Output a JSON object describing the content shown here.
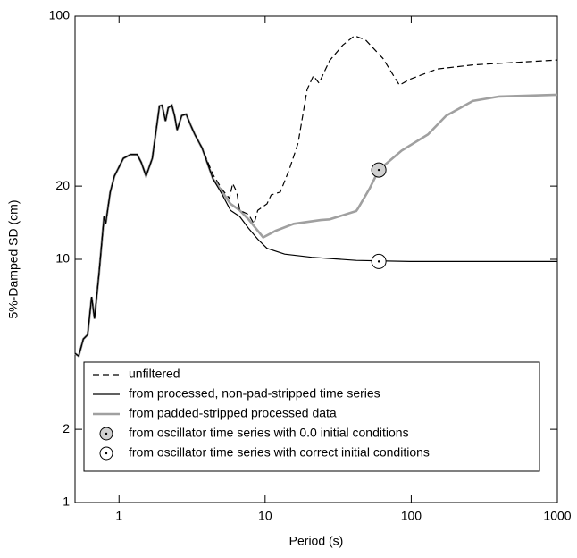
{
  "chart_data": {
    "type": "line",
    "xlabel": "Period (s)",
    "ylabel": "5%-Damped SD (cm)",
    "xscale": "log",
    "yscale": "log",
    "xlim": [
      0.5,
      1000
    ],
    "ylim": [
      1,
      100
    ],
    "xticks": [
      1,
      10,
      100,
      1000
    ],
    "yticks": [
      1,
      2,
      10,
      20,
      100
    ],
    "series": [
      {
        "name": "unfiltered",
        "color": "#000000",
        "dash": "7,4",
        "width": 1.2,
        "x": [
          0.5,
          0.53,
          0.57,
          0.61,
          0.65,
          0.68,
          0.73,
          0.79,
          0.81,
          0.87,
          0.93,
          1.07,
          1.2,
          1.33,
          1.42,
          1.53,
          1.69,
          1.89,
          1.97,
          2.08,
          2.17,
          2.3,
          2.4,
          2.5,
          2.69,
          2.88,
          3.1,
          3.3,
          3.7,
          4.4,
          5.1,
          5.7,
          6.0,
          6.4,
          6.7,
          7.7,
          8.4,
          8.9,
          10.3,
          11,
          12.7,
          14.6,
          16.8,
          19.4,
          21.4,
          23.4,
          27.6,
          34,
          40.9,
          48.7,
          64,
          83,
          98,
          150,
          264,
          1000
        ],
        "values": [
          4.1,
          4.0,
          4.7,
          4.9,
          7.0,
          5.7,
          8.8,
          15.0,
          14.0,
          18.9,
          22,
          26,
          27,
          27,
          25,
          22,
          26,
          42.7,
          43,
          37,
          42,
          43,
          39,
          34,
          39,
          39.5,
          35.5,
          32.6,
          28.7,
          22.3,
          19.3,
          17.8,
          20.5,
          18.9,
          15.9,
          15.3,
          14.0,
          15.9,
          16.9,
          18.4,
          18.9,
          23.3,
          30,
          50,
          56.8,
          53,
          65.6,
          76,
          83,
          79.8,
          67,
          52,
          55,
          60.6,
          63,
          66
        ]
      },
      {
        "name": "from processed, non-pad-stripped time series",
        "color": "#000000",
        "dash": null,
        "width": 1.2,
        "x": [
          0.5,
          0.53,
          0.57,
          0.61,
          0.65,
          0.68,
          0.73,
          0.79,
          0.81,
          0.87,
          0.93,
          1.07,
          1.2,
          1.33,
          1.42,
          1.53,
          1.69,
          1.89,
          1.97,
          2.08,
          2.17,
          2.3,
          2.4,
          2.5,
          2.69,
          2.88,
          3.1,
          3.3,
          3.7,
          4.4,
          5.1,
          5.8,
          6.7,
          7.7,
          8.9,
          10.3,
          13.6,
          20.8,
          42,
          98,
          1000
        ],
        "values": [
          4.1,
          4.0,
          4.7,
          4.9,
          7.0,
          5.7,
          8.8,
          15.0,
          14.0,
          18.9,
          22,
          26,
          27,
          27,
          25,
          22,
          26,
          42.7,
          43,
          37,
          42,
          43,
          39,
          34,
          39,
          39.5,
          35.5,
          32.6,
          28.7,
          21.4,
          18.4,
          15.9,
          15.0,
          13.4,
          12.1,
          11.1,
          10.5,
          10.2,
          9.9,
          9.8,
          9.8
        ]
      },
      {
        "name": "from padded-stripped processed data",
        "color": "#a0a0a0",
        "dash": null,
        "width": 2.6,
        "x": [
          0.5,
          0.53,
          0.57,
          0.61,
          0.65,
          0.68,
          0.73,
          0.79,
          0.81,
          0.87,
          0.93,
          1.07,
          1.2,
          1.33,
          1.42,
          1.53,
          1.69,
          1.89,
          1.97,
          2.08,
          2.17,
          2.3,
          2.4,
          2.5,
          2.69,
          2.88,
          3.1,
          3.3,
          3.7,
          4.4,
          5.1,
          5.8,
          6.7,
          7.7,
          8.9,
          9.7,
          11.8,
          15.7,
          24,
          27.6,
          42,
          43,
          52,
          60,
          86,
          130,
          173,
          264,
          400,
          1000
        ],
        "values": [
          4.1,
          4.0,
          4.7,
          4.9,
          7.0,
          5.7,
          8.8,
          15.0,
          14.0,
          18.9,
          22,
          26,
          27,
          27,
          25,
          22,
          26,
          42.7,
          43,
          37,
          42,
          43,
          39,
          34,
          39,
          39.5,
          35.5,
          32.6,
          28.7,
          21.4,
          18.9,
          16.9,
          15.9,
          14.6,
          13.1,
          12.3,
          13.1,
          14.0,
          14.5,
          14.6,
          15.8,
          16.1,
          19.6,
          23.3,
          28.0,
          32.6,
          38.9,
          44.8,
          46.7,
          47.5
        ]
      }
    ],
    "markers": [
      {
        "name": "from oscillator time series with 0.0 initial conditions",
        "fill": "#d0d0d0",
        "x": [
          60
        ],
        "values": [
          23.3
        ]
      },
      {
        "name": "from oscillator time series with correct initial conditions",
        "fill": "#ffffff",
        "x": [
          60
        ],
        "values": [
          9.8
        ]
      }
    ]
  }
}
